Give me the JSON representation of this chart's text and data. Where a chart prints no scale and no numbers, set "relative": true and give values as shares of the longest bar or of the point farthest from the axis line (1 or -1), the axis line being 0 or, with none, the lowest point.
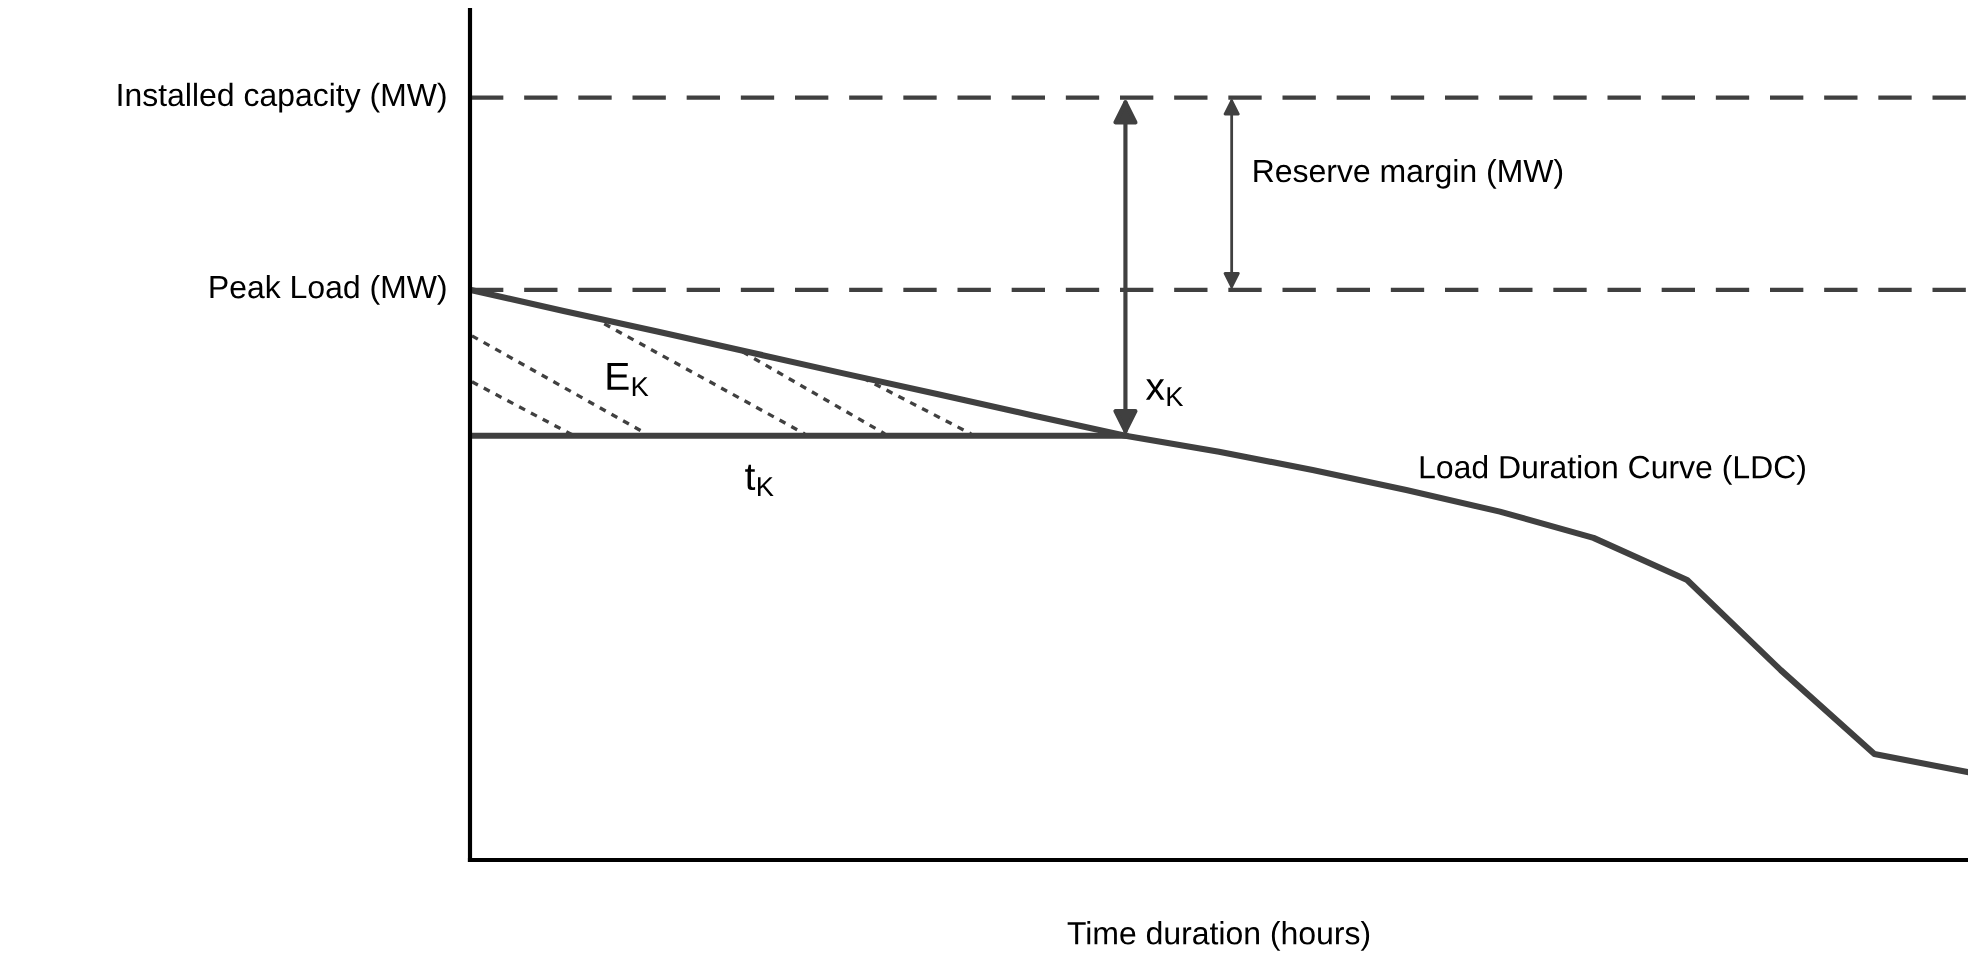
{
  "chart_data": {
    "type": "line",
    "relative": true,
    "xlabel": "Time duration (hours)",
    "categories": [
      null,
      null,
      null,
      null,
      null,
      null,
      null,
      null,
      null,
      null,
      null,
      null,
      null,
      null,
      null,
      null,
      null
    ],
    "series": [
      {
        "color": "#404040",
        "values": [
          1.0,
          0.963,
          0.927,
          0.89,
          0.853,
          0.817,
          0.78,
          0.744,
          0.716,
          0.684,
          0.649,
          0.611,
          0.565,
          0.491,
          0.333,
          0.186,
          0.154
        ]
      },
      {
        "color": "#404040",
        "values": [
          0.744,
          0.744,
          0.744,
          0.744,
          0.744,
          0.744,
          0.744,
          0.744,
          null,
          null,
          null,
          null,
          null,
          null,
          null,
          null,
          null
        ]
      }
    ],
    "ref_lines": [
      {
        "axis": "y",
        "value": 1.337,
        "label": "Installed capacity (MW)",
        "color": "#404040",
        "line_style": "dashed"
      },
      {
        "axis": "y",
        "value": 1.0,
        "label": "Peak Load (MW)",
        "color": "#404040",
        "line_style": "dashed"
      }
    ],
    "annotations": [
      "Reserve margin (MW)",
      "E$_{K}$",
      "x$_{K}$",
      "t$_{K}$",
      "Load Duration Curve (LDC)"
    ],
    "marker": "none",
    "line_style": "solid",
    "legend": false
  }
}
